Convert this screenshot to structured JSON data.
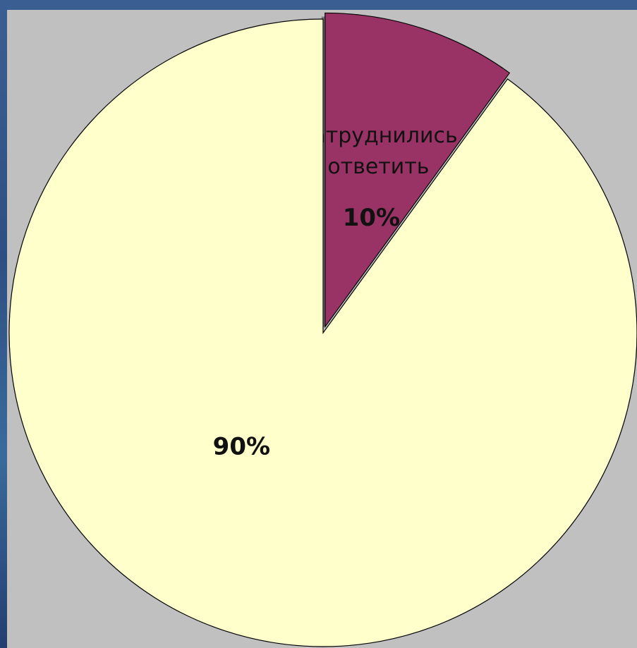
{
  "chart_data": {
    "type": "pie",
    "categories": [
      "Затруднились ответить",
      null
    ],
    "values": [
      10,
      90
    ],
    "value_labels": [
      "10%",
      "90%"
    ],
    "colors": [
      "#993366",
      "#ffffcc"
    ]
  }
}
